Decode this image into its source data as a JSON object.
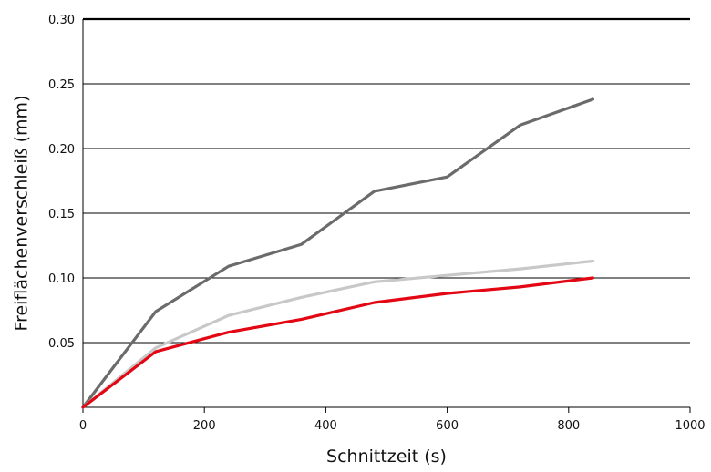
{
  "chart_data": {
    "type": "line",
    "title": "",
    "xlabel": "Schnittzeit (s)",
    "ylabel": "Freiflächenverschleiß (mm)",
    "xlim": [
      0,
      1000
    ],
    "ylim": [
      0,
      0.3
    ],
    "x_ticks": [
      {
        "value": 0,
        "label": "0"
      },
      {
        "value": 200,
        "label": "200"
      },
      {
        "value": 400,
        "label": "400"
      },
      {
        "value": 600,
        "label": "600"
      },
      {
        "value": 800,
        "label": "800"
      },
      {
        "value": 1000,
        "label": "1000"
      }
    ],
    "y_ticks": [
      {
        "value": 0.05,
        "label": "0.05"
      },
      {
        "value": 0.1,
        "label": "0.10"
      },
      {
        "value": 0.15,
        "label": "0.15"
      },
      {
        "value": 0.2,
        "label": "0.20"
      },
      {
        "value": 0.25,
        "label": "0.25"
      },
      {
        "value": 0.3,
        "label": "0.30"
      }
    ],
    "grid": "horizontal",
    "series": [
      {
        "color": "#6b6b6b",
        "x": [
          0,
          120,
          240,
          360,
          480,
          600,
          720,
          840
        ],
        "y": [
          0.0,
          0.074,
          0.109,
          0.126,
          0.167,
          0.178,
          0.218,
          0.238
        ]
      },
      {
        "color": "#c8c8c8",
        "x": [
          0,
          120,
          240,
          360,
          480,
          600,
          720,
          840
        ],
        "y": [
          0.0,
          0.046,
          0.071,
          0.085,
          0.097,
          0.102,
          0.107,
          0.113
        ]
      },
      {
        "color": "#e30613",
        "x": [
          0,
          120,
          240,
          360,
          480,
          600,
          720,
          840
        ],
        "y": [
          0.0,
          0.043,
          0.058,
          0.068,
          0.081,
          0.088,
          0.093,
          0.1
        ]
      }
    ]
  }
}
